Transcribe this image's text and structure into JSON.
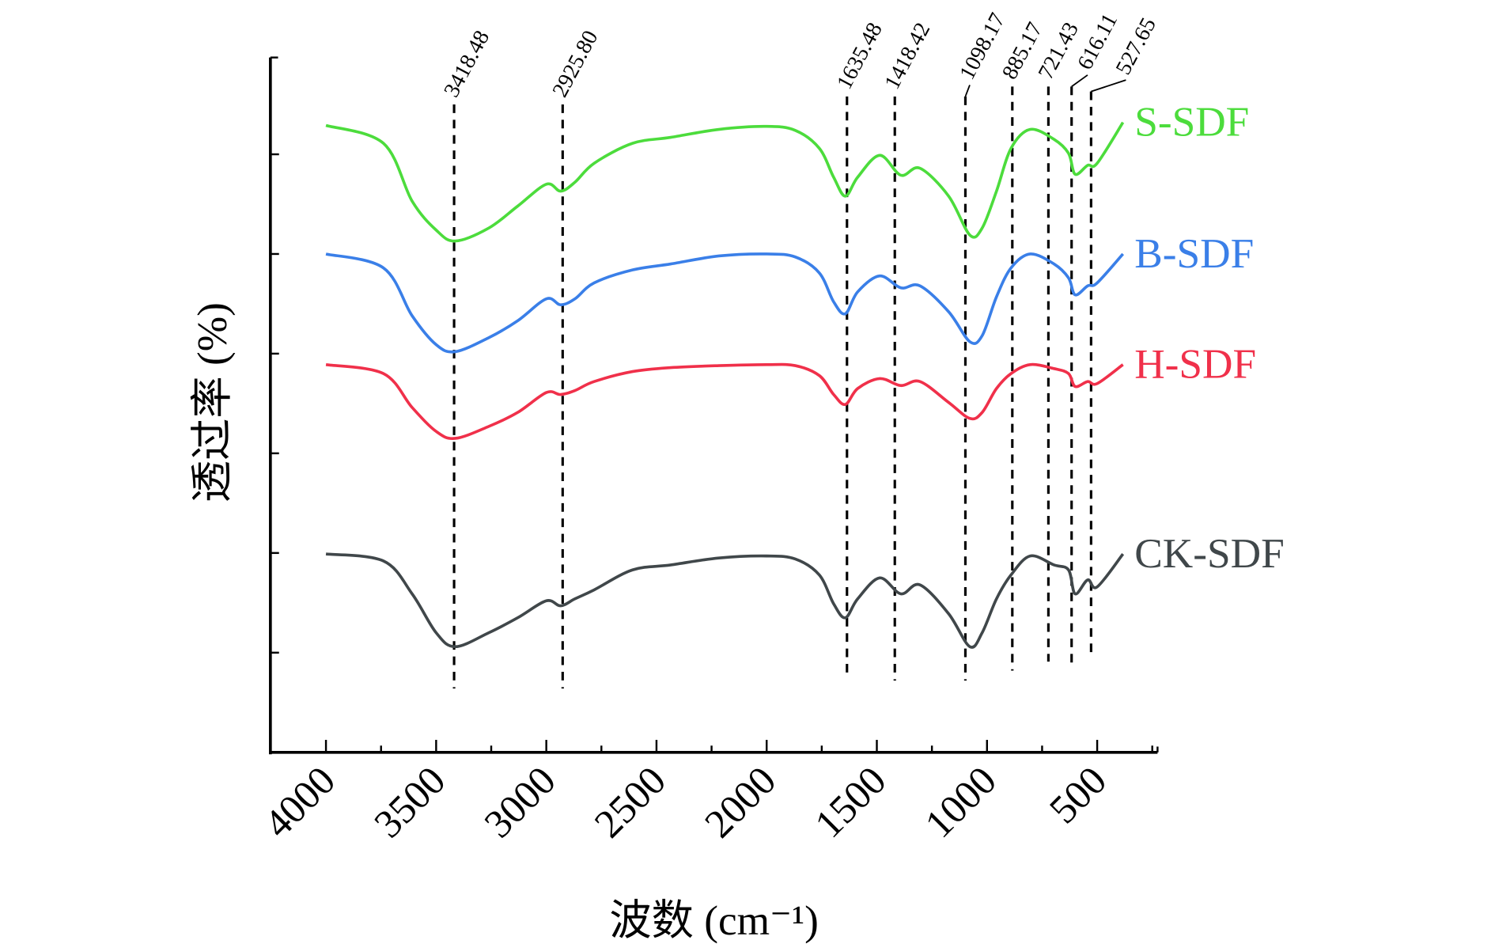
{
  "chart_data": {
    "type": "line",
    "xlabel": "波数 (cm⁻¹)",
    "ylabel": "透过率 (%)",
    "xlim": [
      4000,
      230
    ],
    "x_reversed": true,
    "xticks": [
      4000,
      3500,
      3000,
      2500,
      2000,
      1500,
      1000,
      500
    ],
    "ylim": [
      0,
      7
    ],
    "y_tick_labels_shown": false,
    "grid": false,
    "x": [
      4000,
      3739,
      3609,
      3500,
      3413,
      3261,
      3130,
      3000,
      2935,
      2870,
      2783,
      2609,
      2435,
      2217,
      2000,
      1870,
      1761,
      1696,
      1643,
      1587,
      1487,
      1391,
      1304,
      1174,
      1078,
      1022,
      957,
      891,
      804,
      696,
      630,
      600,
      543,
      500,
      383
    ],
    "series": [
      {
        "name": "S-SDF",
        "color": "#4cdc3c",
        "values": [
          6.29,
          6.11,
          5.53,
          5.24,
          5.13,
          5.26,
          5.48,
          5.7,
          5.63,
          5.72,
          5.91,
          6.11,
          6.17,
          6.25,
          6.28,
          6.24,
          6.06,
          5.77,
          5.58,
          5.77,
          5.99,
          5.79,
          5.86,
          5.58,
          5.19,
          5.26,
          5.63,
          6.06,
          6.25,
          6.15,
          6.01,
          5.8,
          5.89,
          5.91,
          6.32
        ]
      },
      {
        "name": "B-SDF",
        "color": "#3a7fe8",
        "values": [
          5.0,
          4.86,
          4.38,
          4.09,
          4.02,
          4.16,
          4.33,
          4.55,
          4.49,
          4.55,
          4.71,
          4.84,
          4.9,
          4.98,
          5.0,
          4.97,
          4.81,
          4.52,
          4.4,
          4.62,
          4.78,
          4.66,
          4.68,
          4.42,
          4.12,
          4.18,
          4.57,
          4.86,
          5.0,
          4.9,
          4.76,
          4.59,
          4.68,
          4.71,
          5.0
        ]
      },
      {
        "name": "H-SDF",
        "color": "#f0304a",
        "values": [
          3.89,
          3.8,
          3.46,
          3.22,
          3.15,
          3.27,
          3.41,
          3.61,
          3.59,
          3.63,
          3.72,
          3.82,
          3.86,
          3.88,
          3.89,
          3.88,
          3.78,
          3.59,
          3.49,
          3.65,
          3.75,
          3.68,
          3.72,
          3.51,
          3.35,
          3.41,
          3.65,
          3.8,
          3.89,
          3.85,
          3.8,
          3.67,
          3.72,
          3.7,
          3.89
        ]
      },
      {
        "name": "CK-SDF",
        "color": "#40474a",
        "values": [
          1.99,
          1.92,
          1.59,
          1.2,
          1.06,
          1.2,
          1.35,
          1.52,
          1.47,
          1.54,
          1.63,
          1.83,
          1.88,
          1.95,
          1.97,
          1.94,
          1.78,
          1.49,
          1.35,
          1.54,
          1.75,
          1.59,
          1.68,
          1.39,
          1.06,
          1.2,
          1.54,
          1.78,
          1.97,
          1.88,
          1.83,
          1.59,
          1.73,
          1.66,
          1.99
        ]
      }
    ],
    "annotations": [
      {
        "label": "3418.48",
        "x": 3418.48,
        "y_range": [
          0.64,
          6.5
        ]
      },
      {
        "label": "2925.80",
        "x": 2925.8,
        "y_range": [
          0.64,
          6.5
        ]
      },
      {
        "label": "1635.48",
        "x": 1635.48,
        "y_range": [
          0.77,
          6.58
        ]
      },
      {
        "label": "1418.42",
        "x": 1418.42,
        "y_range": [
          0.72,
          6.58
        ]
      },
      {
        "label": "1098.17",
        "x": 1098.17,
        "y_range": [
          0.72,
          6.58
        ]
      },
      {
        "label": "885.17",
        "x": 885.17,
        "y_range": [
          0.82,
          6.68
        ]
      },
      {
        "label": "721.43",
        "x": 721.43,
        "y_range": [
          0.91,
          6.68
        ]
      },
      {
        "label": "616.11",
        "x": 616.11,
        "y_range": [
          0.88,
          6.68
        ]
      },
      {
        "label": "527.65",
        "x": 527.65,
        "y_range": [
          0.96,
          6.63
        ]
      }
    ]
  }
}
